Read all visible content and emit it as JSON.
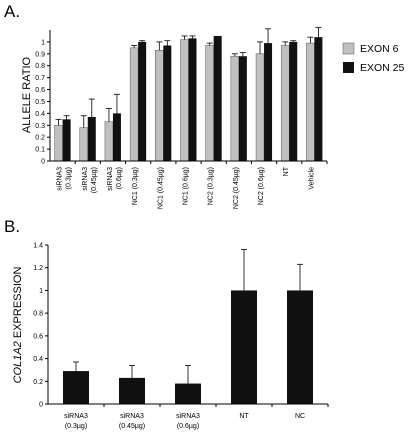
{
  "panel_a": {
    "label": "A.",
    "ylabel": "ALLELE RATIO",
    "legend": [
      {
        "name": "EXON 6",
        "color": "#c0c0c0"
      },
      {
        "name": "EXON 25",
        "color": "#111111"
      }
    ]
  },
  "panel_b": {
    "label": "B.",
    "ylabel_italic": "COL1A2",
    "ylabel_rest": " EXPRESSION"
  },
  "chart_data": [
    {
      "type": "bar",
      "title": "",
      "xlabel": "",
      "ylabel": "ALLELE RATIO",
      "ylim": [
        0,
        1.1
      ],
      "yticks": [
        0,
        0.1,
        0.2,
        0.3,
        0.4,
        0.5,
        0.6,
        0.7,
        0.8,
        0.9,
        1
      ],
      "ytick_labels": [
        "0",
        "0.1",
        "0.2",
        "0.3",
        "0.4",
        "0.5",
        "0.6",
        "0.7",
        "0.8",
        "0.9",
        "1"
      ],
      "grid": false,
      "legend_position": "right",
      "categories": [
        {
          "line1": "siRNA3",
          "line2": "(0.3µg)"
        },
        {
          "line1": "siRNA3",
          "line2": "(0.45µg)"
        },
        {
          "line1": "siRNA3",
          "line2": "(0.6µg)"
        },
        {
          "line1": "NC1 (0.3µg)",
          "line2": ""
        },
        {
          "line1": "NC1 (0.45µg)",
          "line2": ""
        },
        {
          "line1": "NC1 (0.6µg)",
          "line2": ""
        },
        {
          "line1": "NC2 (0.3µg)",
          "line2": ""
        },
        {
          "line1": "NC2 (0.45µg)",
          "line2": ""
        },
        {
          "line1": "NC2 (0.6µg)",
          "line2": ""
        },
        {
          "line1": "NT",
          "line2": ""
        },
        {
          "line1": "Vehicle",
          "line2": ""
        }
      ],
      "series": [
        {
          "name": "EXON 6",
          "color": "#c0c0c0",
          "values": [
            0.3,
            0.28,
            0.33,
            0.95,
            0.93,
            1.02,
            0.97,
            0.88,
            0.9,
            0.97,
            0.99
          ],
          "errors": [
            0.05,
            0.1,
            0.11,
            0.02,
            0.07,
            0.03,
            0.02,
            0.02,
            0.1,
            0.03,
            0.05
          ]
        },
        {
          "name": "EXON 25",
          "color": "#111111",
          "values": [
            0.35,
            0.37,
            0.4,
            1.0,
            0.97,
            1.03,
            1.05,
            0.88,
            0.99,
            1.0,
            1.04
          ],
          "errors": [
            0.03,
            0.15,
            0.16,
            0.01,
            0.04,
            0.02,
            0.0,
            0.03,
            0.12,
            0.01,
            0.08
          ]
        }
      ]
    },
    {
      "type": "bar",
      "title": "",
      "xlabel": "",
      "ylabel": "COL1A2 EXPRESSION",
      "ylim": [
        0,
        1.4
      ],
      "yticks": [
        0,
        0.2,
        0.4,
        0.6,
        0.8,
        1,
        1.2,
        1.4
      ],
      "ytick_labels": [
        "0",
        "0.2",
        "0.4",
        "0.6",
        "0.8",
        "1",
        "1.2",
        "1.4"
      ],
      "grid": false,
      "categories": [
        {
          "line1": "siRNA3",
          "line2": "(0.3µg)"
        },
        {
          "line1": "siRNA3",
          "line2": "(0.45µg)"
        },
        {
          "line1": "siRNA3",
          "line2": "(0.6µg)"
        },
        {
          "line1": "NT",
          "line2": ""
        },
        {
          "line1": "NC",
          "line2": ""
        }
      ],
      "series": [
        {
          "color": "#111111",
          "values": [
            0.29,
            0.23,
            0.18,
            1.0,
            1.0
          ],
          "errors": [
            0.08,
            0.11,
            0.16,
            0.36,
            0.23
          ]
        }
      ]
    }
  ]
}
